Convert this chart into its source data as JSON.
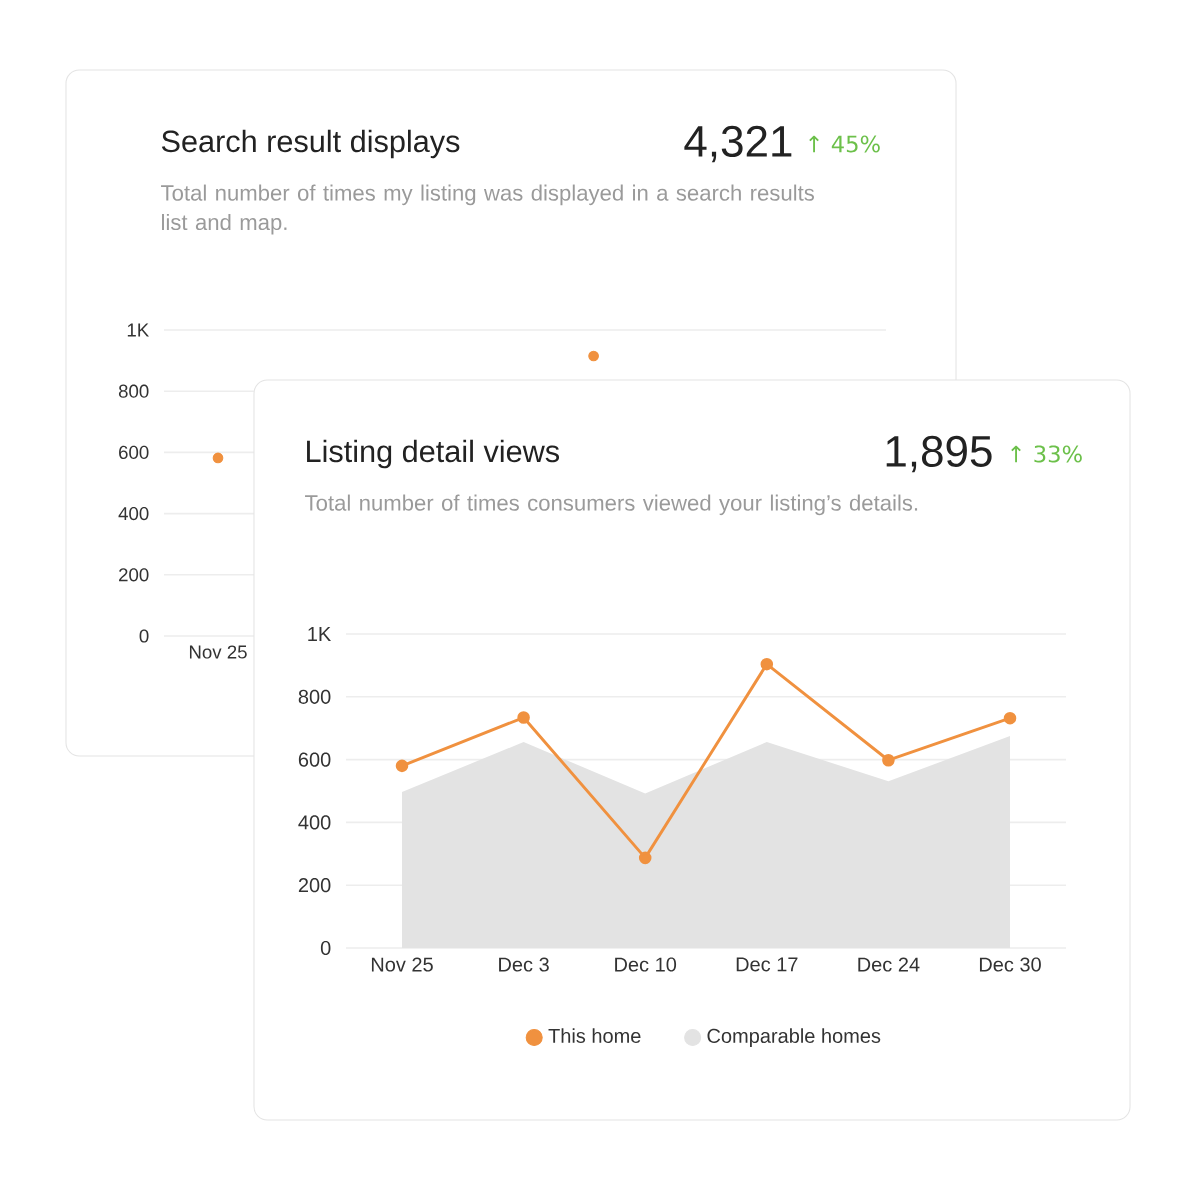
{
  "chart_data": [
    {
      "type": "line",
      "title": "Search result displays",
      "subtitle": "Total number of times my listing was displayed in a search results list and map.",
      "annotations": [
        "4,321",
        "↑ 45%"
      ],
      "categories": [
        "Nov 25",
        null,
        null,
        null,
        null,
        null
      ],
      "series": [
        {
          "type": "scatter",
          "color": "#f0913f",
          "values": [
            582,
            null,
            null,
            915,
            null,
            null
          ],
          "marker": "circle"
        }
      ],
      "ylim": [
        0,
        1000
      ],
      "yticks": [
        0,
        200,
        400,
        600,
        800,
        {
          "value": 1000,
          "label": "1K"
        }
      ],
      "grid": "y"
    },
    {
      "type": "line",
      "title": "Listing detail views",
      "subtitle": "Total number of times consumers viewed your listing’s details.",
      "annotations": [
        "1,895",
        "↑ 33%"
      ],
      "categories": [
        "Nov 25",
        "Dec 3",
        "Dec 10",
        "Dec 17",
        "Dec 24",
        "Dec 30"
      ],
      "series": [
        {
          "name": "This home",
          "color": "#f0913f",
          "values": [
            580,
            734,
            287,
            904,
            598,
            732
          ],
          "marker": "circle"
        },
        {
          "name": "Comparable homes",
          "type": "area",
          "color": "#e3e3e3",
          "values": [
            497,
            656,
            492,
            656,
            531,
            675
          ]
        }
      ],
      "ylim": [
        0,
        1000
      ],
      "yticks": [
        0,
        200,
        400,
        600,
        800,
        {
          "value": 1000,
          "label": "1K"
        }
      ],
      "grid": "y",
      "legend": "bottom"
    }
  ]
}
